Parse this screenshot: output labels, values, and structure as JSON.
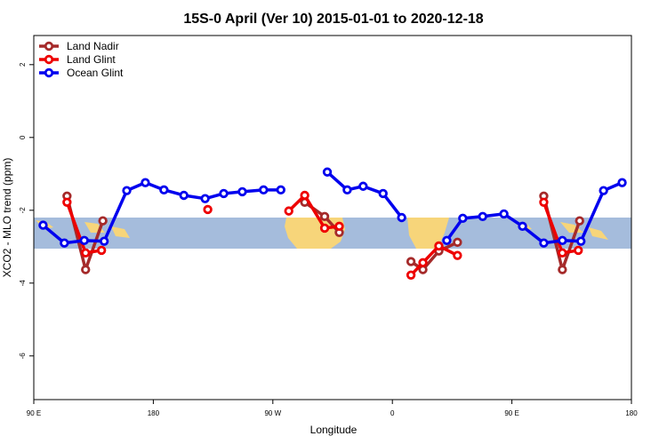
{
  "chart_data": {
    "type": "line",
    "title": "15S-0 April (Ver 10)   2015-01-01 to 2020-12-18",
    "x_label": "Longitude",
    "y_label": "XCO2 - MLO trend (ppm)",
    "xlim": [
      90,
      540
    ],
    "xticks": [
      {
        "value": 90,
        "label": "90 E"
      },
      {
        "value": 180,
        "label": "180"
      },
      {
        "value": 270,
        "label": "90 W"
      },
      {
        "value": 360,
        "label": "0"
      },
      {
        "value": 450,
        "label": "90 E"
      },
      {
        "value": 540,
        "label": "180"
      }
    ],
    "ylim": [
      -7.2,
      2.8
    ],
    "yticks": [
      -6,
      -4,
      -2,
      0,
      2
    ],
    "legend": "top-left",
    "series": [
      {
        "name": "Land Nadir",
        "color": "#a52a2a",
        "x": [
          115,
          129,
          142,
          218,
          294,
          309,
          320,
          347,
          374,
          383,
          395,
          409,
          441,
          474,
          488,
          501
        ],
        "values": [
          -1.61,
          -3.63,
          -2.29,
          null,
          -1.78,
          -2.17,
          -2.61,
          null,
          -3.41,
          -3.63,
          -3.12,
          -2.88,
          null,
          -1.61,
          -3.63,
          -2.29
        ]
      },
      {
        "name": "Land Glint",
        "color": "#ee0000",
        "x": [
          115,
          129,
          141,
          181,
          221,
          252,
          282,
          294,
          309,
          320,
          347,
          374,
          383,
          395,
          409,
          441,
          474,
          488,
          500
        ],
        "values": [
          -1.78,
          -3.17,
          -3.1,
          null,
          -1.98,
          null,
          -2.02,
          -1.59,
          -2.49,
          -2.44,
          null,
          -3.78,
          -3.44,
          -2.98,
          -3.24,
          null,
          -1.78,
          -3.17,
          -3.1
        ]
      },
      {
        "name": "Ocean Glint",
        "color": "#0000ee",
        "x": [
          97,
          113,
          128,
          143,
          160,
          174,
          188,
          203,
          219,
          233,
          247,
          263,
          276,
          293,
          311,
          326,
          338,
          353,
          367,
          384,
          401,
          413,
          428,
          444,
          458,
          474,
          488,
          502,
          519,
          533
        ],
        "values": [
          -2.41,
          -2.9,
          -2.83,
          -2.85,
          -1.46,
          -1.24,
          -1.44,
          -1.59,
          -1.68,
          -1.54,
          -1.49,
          -1.44,
          -1.44,
          null,
          -0.95,
          -1.44,
          -1.34,
          -1.54,
          -2.2,
          null,
          -2.83,
          -2.22,
          -2.17,
          -2.1,
          -2.44,
          -2.9,
          -2.83,
          -2.85,
          -1.46,
          -1.24
        ]
      }
    ]
  }
}
